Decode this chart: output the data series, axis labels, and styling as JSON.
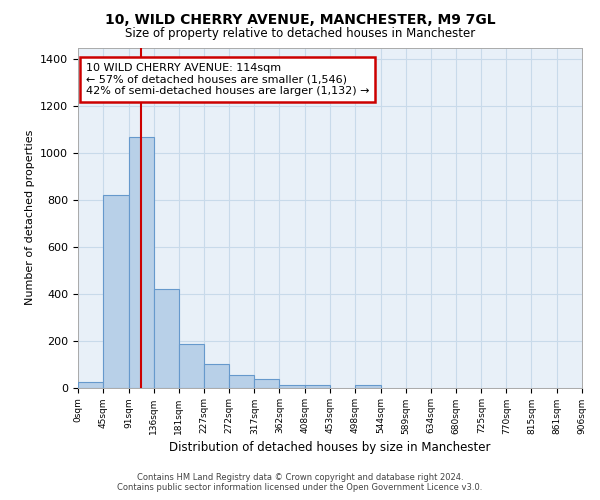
{
  "title1": "10, WILD CHERRY AVENUE, MANCHESTER, M9 7GL",
  "title2": "Size of property relative to detached houses in Manchester",
  "xlabel": "Distribution of detached houses by size in Manchester",
  "ylabel": "Number of detached properties",
  "bar_edges": [
    0,
    45,
    91,
    136,
    181,
    227,
    272,
    317,
    362,
    408,
    453,
    498,
    544,
    589,
    634,
    680,
    725,
    770,
    815,
    861,
    906
  ],
  "bar_heights": [
    25,
    820,
    1070,
    420,
    185,
    100,
    55,
    37,
    10,
    10,
    0,
    10,
    0,
    0,
    0,
    0,
    0,
    0,
    0,
    0
  ],
  "bar_color": "#b8d0e8",
  "bar_edge_color": "#6699cc",
  "grid_color": "#c8daea",
  "bg_color": "#e8f0f8",
  "property_line_x": 114,
  "property_line_color": "#cc0000",
  "annotation_line1": "10 WILD CHERRY AVENUE: 114sqm",
  "annotation_line2": "← 57% of detached houses are smaller (1,546)",
  "annotation_line3": "42% of semi-detached houses are larger (1,132) →",
  "annotation_box_color": "#cc0000",
  "ylim": [
    0,
    1450
  ],
  "xlim": [
    0,
    906
  ],
  "yticks": [
    0,
    200,
    400,
    600,
    800,
    1000,
    1200,
    1400
  ],
  "xtick_labels": [
    "0sqm",
    "45sqm",
    "91sqm",
    "136sqm",
    "181sqm",
    "227sqm",
    "272sqm",
    "317sqm",
    "362sqm",
    "408sqm",
    "453sqm",
    "498sqm",
    "544sqm",
    "589sqm",
    "634sqm",
    "680sqm",
    "725sqm",
    "770sqm",
    "815sqm",
    "861sqm",
    "906sqm"
  ],
  "footer1": "Contains HM Land Registry data © Crown copyright and database right 2024.",
  "footer2": "Contains public sector information licensed under the Open Government Licence v3.0."
}
